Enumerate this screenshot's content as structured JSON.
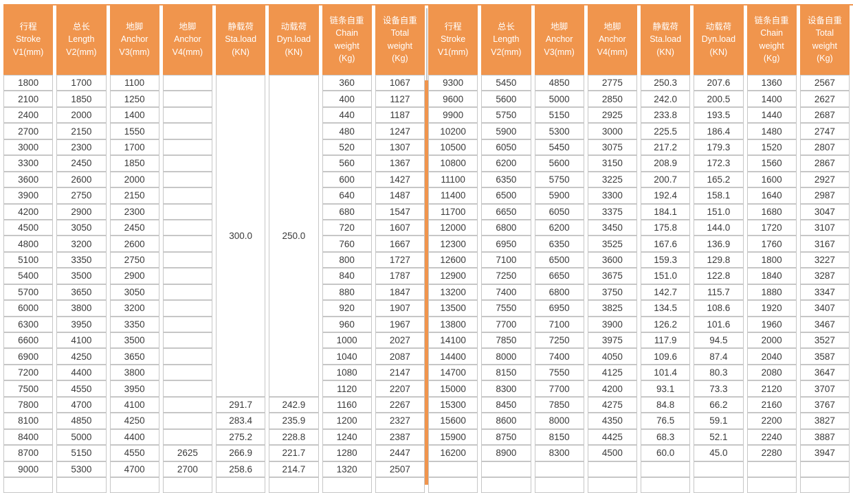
{
  "page": {
    "accent_orange": "#F0954D",
    "grid_gray": "#C6C6C6",
    "header_text_color": "#FFFFFF",
    "cell_text_color": "#3A3A3A"
  },
  "table": {
    "column_headers": [
      {
        "lines": [
          "行程",
          "Stroke",
          "V1(mm)"
        ]
      },
      {
        "lines": [
          "总长",
          "Length",
          "V2(mm)"
        ]
      },
      {
        "lines": [
          "地脚",
          "Anchor",
          "V3(mm)"
        ]
      },
      {
        "lines": [
          "地脚",
          "Anchor",
          "V4(mm)"
        ]
      },
      {
        "lines": [
          "静载荷",
          "Sta.load",
          "(KN)"
        ]
      },
      {
        "lines": [
          "动载荷",
          "Dyn.load",
          "(KN)"
        ]
      },
      {
        "lines": [
          "链条自重",
          "Chain",
          "weight",
          "(Kg)"
        ]
      },
      {
        "lines": [
          "设备自重",
          "Total",
          "weight",
          "(Kg)"
        ]
      }
    ],
    "left": {
      "stroke_v1": [
        "1800",
        "2100",
        "2400",
        "2700",
        "3000",
        "3300",
        "3600",
        "3900",
        "4200",
        "4500",
        "4800",
        "5100",
        "5400",
        "5700",
        "6000",
        "6300",
        "6600",
        "6900",
        "7200",
        "7500",
        "7800",
        "8100",
        "8400",
        "8700",
        "9000"
      ],
      "length_v2": [
        "1700",
        "1850",
        "2000",
        "2150",
        "2300",
        "2450",
        "2600",
        "2750",
        "2900",
        "3050",
        "3200",
        "3350",
        "3500",
        "3650",
        "3800",
        "3950",
        "4100",
        "4250",
        "4400",
        "4550",
        "4700",
        "4850",
        "5000",
        "5150",
        "5300"
      ],
      "anchor_v3": [
        "1100",
        "1250",
        "1400",
        "1550",
        "1700",
        "1850",
        "2000",
        "2150",
        "2300",
        "2450",
        "2600",
        "2750",
        "2900",
        "3050",
        "3200",
        "3350",
        "3500",
        "3650",
        "3800",
        "3950",
        "4100",
        "4250",
        "4400",
        "4550",
        "4700"
      ],
      "anchor_v4": [
        "",
        "",
        "",
        "",
        "",
        "",
        "",
        "",
        "",
        "",
        "",
        "",
        "",
        "",
        "",
        "",
        "",
        "",
        "",
        "",
        "",
        "",
        "",
        "2625",
        "2700"
      ],
      "merged_rows": 20,
      "sta_load_merged": "300.0",
      "dyn_load_merged": "250.0",
      "sta_load_tail": [
        "291.7",
        "283.4",
        "275.2",
        "266.9",
        "258.6"
      ],
      "dyn_load_tail": [
        "242.9",
        "235.9",
        "228.8",
        "221.7",
        "214.7"
      ],
      "chain_weight": [
        "360",
        "400",
        "440",
        "480",
        "520",
        "560",
        "600",
        "640",
        "680",
        "720",
        "760",
        "800",
        "840",
        "880",
        "920",
        "960",
        "1000",
        "1040",
        "1080",
        "1120",
        "1160",
        "1200",
        "1240",
        "1280",
        "1320"
      ],
      "total_weight": [
        "1067",
        "1127",
        "1187",
        "1247",
        "1307",
        "1367",
        "1427",
        "1487",
        "1547",
        "1607",
        "1667",
        "1727",
        "1787",
        "1847",
        "1907",
        "1967",
        "2027",
        "2087",
        "2147",
        "2207",
        "2267",
        "2327",
        "2387",
        "2447",
        "2507"
      ]
    },
    "right": {
      "stroke_v1": [
        "9300",
        "9600",
        "9900",
        "10200",
        "10500",
        "10800",
        "11100",
        "11400",
        "11700",
        "12000",
        "12300",
        "12600",
        "12900",
        "13200",
        "13500",
        "13800",
        "14100",
        "14400",
        "14700",
        "15000",
        "15300",
        "15600",
        "15900",
        "16200"
      ],
      "length_v2": [
        "5450",
        "5600",
        "5750",
        "5900",
        "6050",
        "6200",
        "6350",
        "6500",
        "6650",
        "6800",
        "6950",
        "7100",
        "7250",
        "7400",
        "7550",
        "7700",
        "7850",
        "8000",
        "8150",
        "8300",
        "8450",
        "8600",
        "8750",
        "8900"
      ],
      "anchor_v3": [
        "4850",
        "5000",
        "5150",
        "5300",
        "5450",
        "5600",
        "5750",
        "5900",
        "6050",
        "6200",
        "6350",
        "6500",
        "6650",
        "6800",
        "6950",
        "7100",
        "7250",
        "7400",
        "7550",
        "7700",
        "7850",
        "8000",
        "8150",
        "8300"
      ],
      "anchor_v4": [
        "2775",
        "2850",
        "2925",
        "3000",
        "3075",
        "3150",
        "3225",
        "3300",
        "3375",
        "3450",
        "3525",
        "3600",
        "3675",
        "3750",
        "3825",
        "3900",
        "3975",
        "4050",
        "4125",
        "4200",
        "4275",
        "4350",
        "4425",
        "4500"
      ],
      "sta_load": [
        "250.3",
        "242.0",
        "233.8",
        "225.5",
        "217.2",
        "208.9",
        "200.7",
        "192.4",
        "184.1",
        "175.8",
        "167.6",
        "159.3",
        "151.0",
        "142.7",
        "134.5",
        "126.2",
        "117.9",
        "109.6",
        "101.4",
        "93.1",
        "84.8",
        "76.5",
        "68.3",
        "60.0"
      ],
      "dyn_load": [
        "207.6",
        "200.5",
        "193.5",
        "186.4",
        "179.3",
        "172.3",
        "165.2",
        "158.1",
        "151.0",
        "144.0",
        "136.9",
        "129.8",
        "122.8",
        "115.7",
        "108.6",
        "101.6",
        "94.5",
        "87.4",
        "80.3",
        "73.3",
        "66.2",
        "59.1",
        "52.1",
        "45.0"
      ],
      "chain_weight": [
        "1360",
        "1400",
        "1440",
        "1480",
        "1520",
        "1560",
        "1600",
        "1640",
        "1680",
        "1720",
        "1760",
        "1800",
        "1840",
        "1880",
        "1920",
        "1960",
        "2000",
        "2040",
        "2080",
        "2120",
        "2160",
        "2200",
        "2240",
        "2280"
      ],
      "total_weight": [
        "2567",
        "2627",
        "2687",
        "2747",
        "2807",
        "2867",
        "2927",
        "2987",
        "3047",
        "3107",
        "3167",
        "3227",
        "3287",
        "3347",
        "3407",
        "3467",
        "3527",
        "3587",
        "3647",
        "3707",
        "3767",
        "3827",
        "3887",
        "3947"
      ]
    },
    "visual_rows": 26
  }
}
